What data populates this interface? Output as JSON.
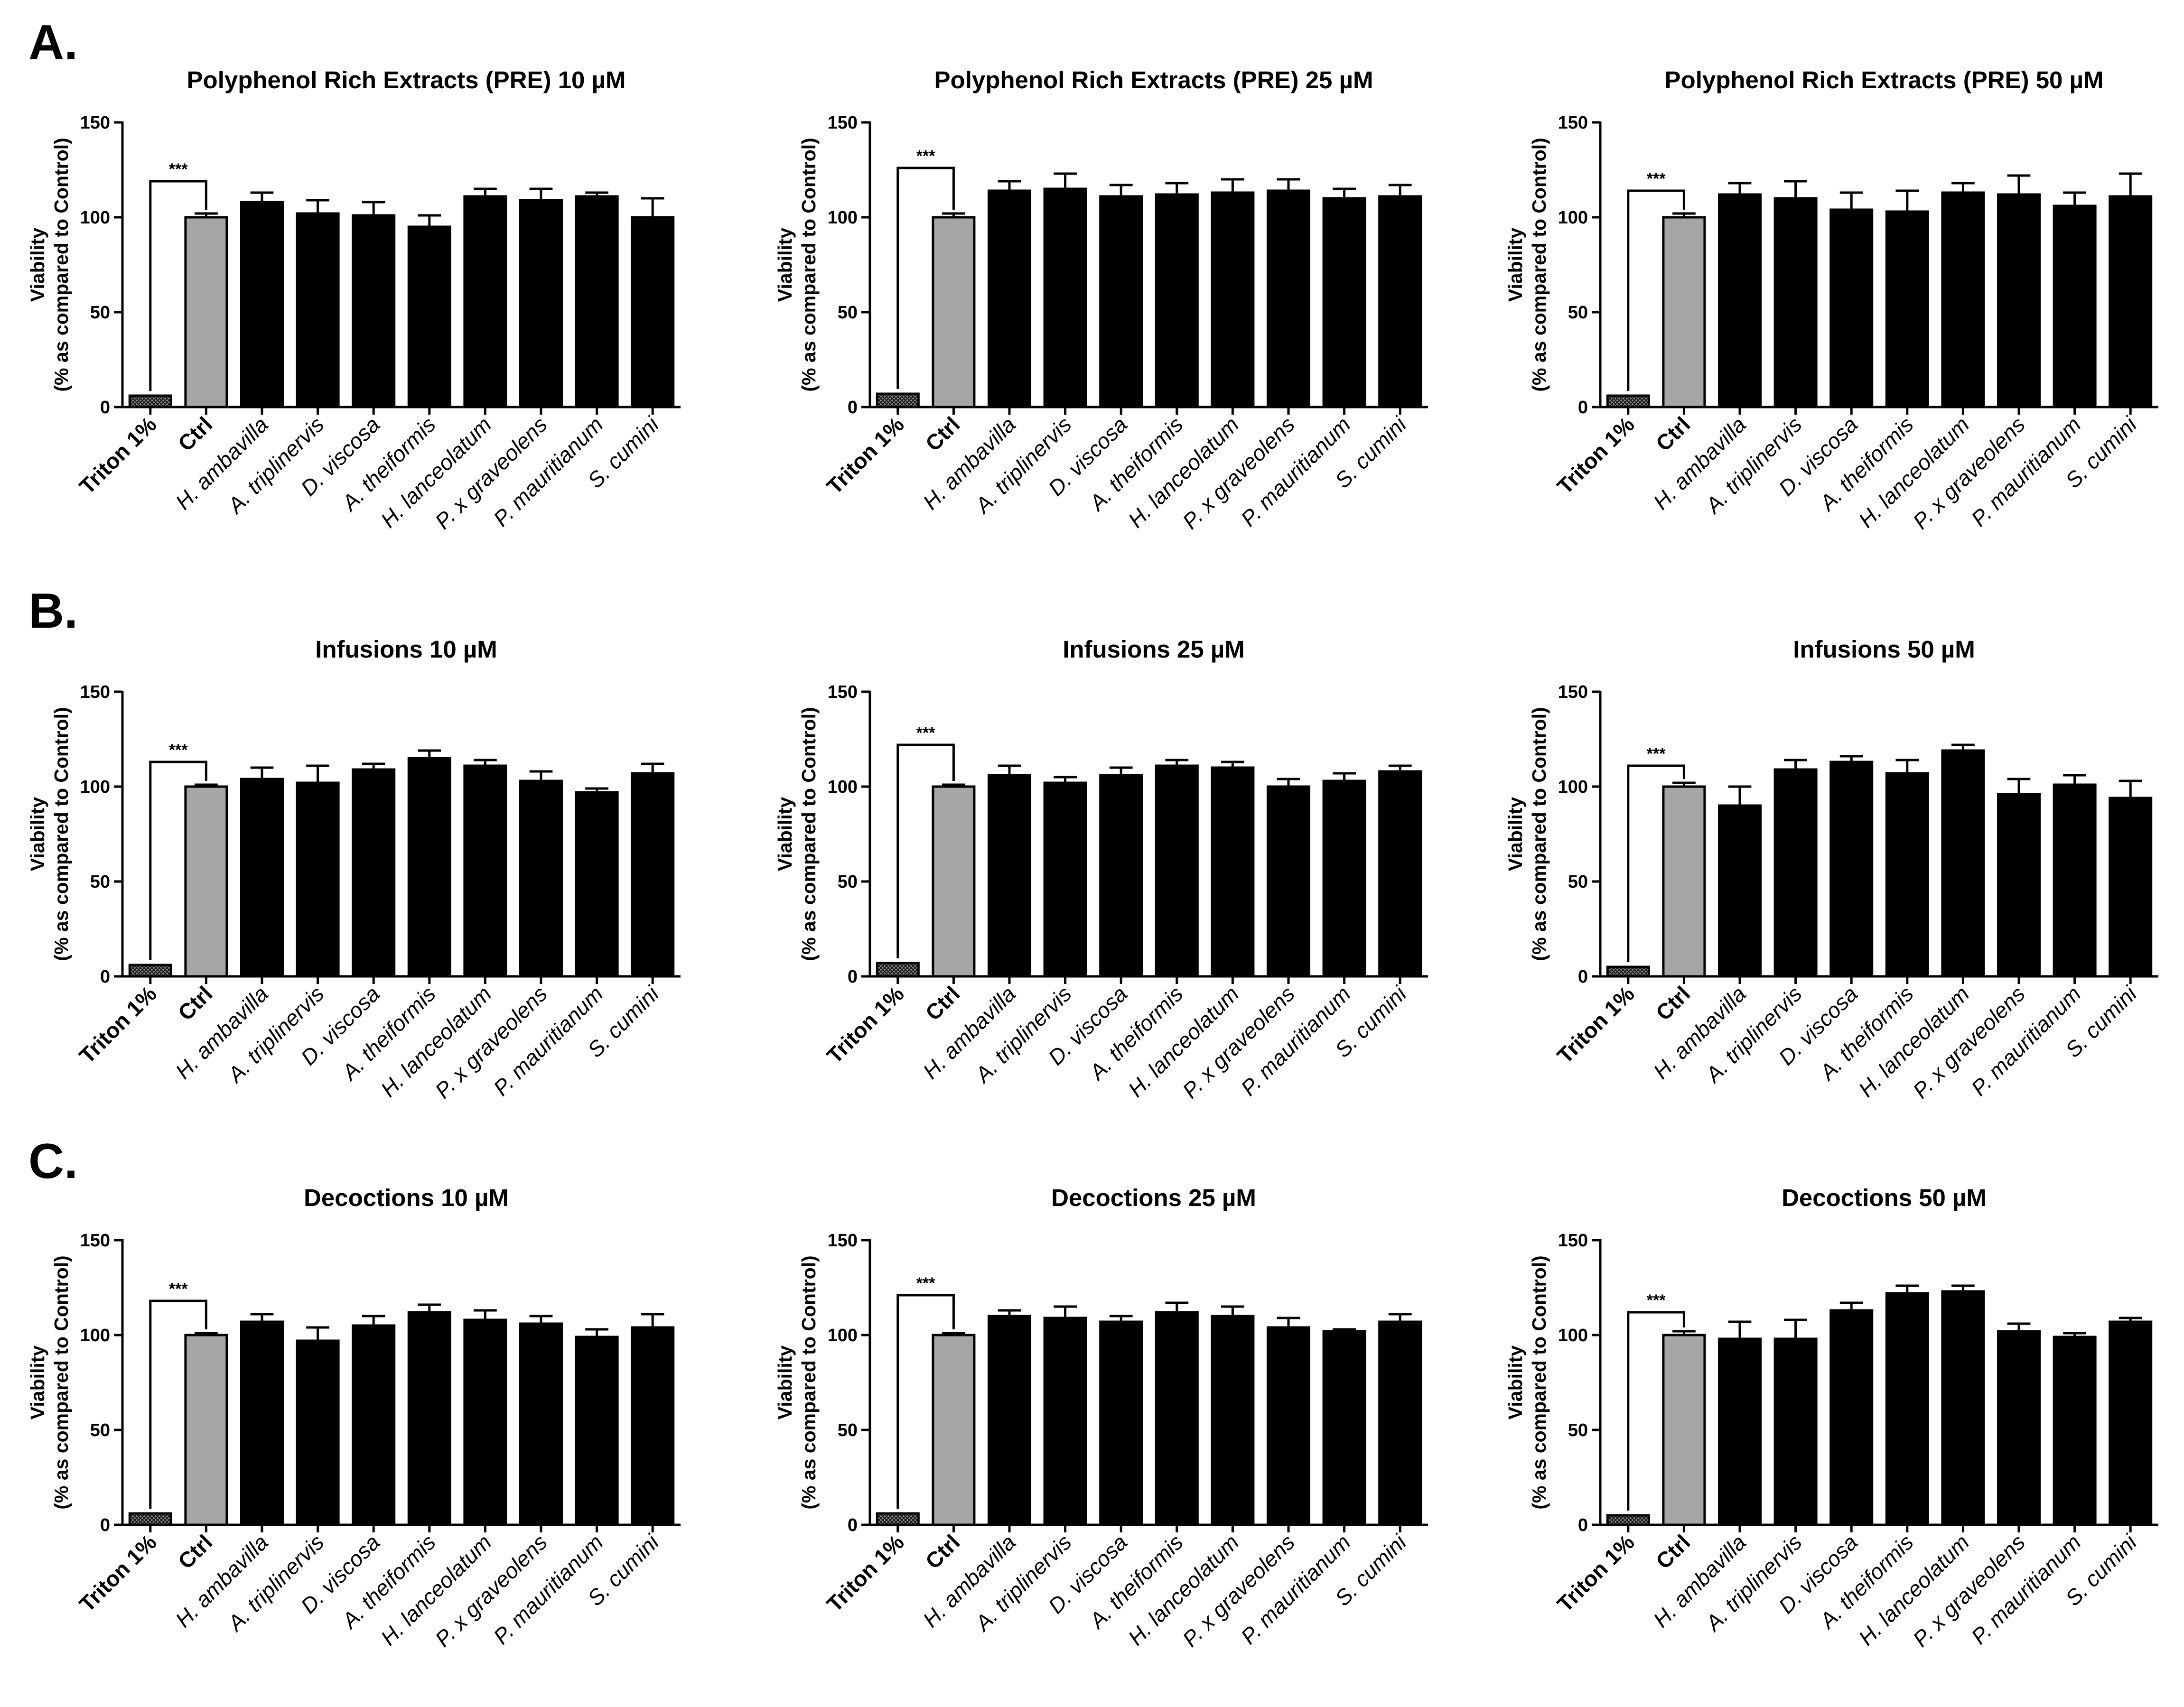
{
  "categories": [
    "Triton 1%",
    "Ctrl",
    "H. ambavilla",
    "A. triplinervis",
    "D. viscosa",
    "A. theiformis",
    "H. lanceolatum",
    "P. x graveolens",
    "P. mauritianum",
    "S. cumini"
  ],
  "colors": {
    "triton": "#555555",
    "ctrl": "#a6a6a6",
    "extract": "#000000",
    "axis": "#000000"
  },
  "chart_data": [
    {
      "panel": "A.",
      "type": "bar",
      "title": "Polyphenol Rich Extracts (PRE) 10 µM",
      "ylabel": "Viability (% as compared to Control)",
      "ylim": [
        0,
        150
      ],
      "yticks": [
        0,
        50,
        100,
        150
      ],
      "values": [
        6,
        100,
        108,
        102,
        101,
        95,
        111,
        109,
        111,
        100
      ],
      "errors": [
        0,
        2,
        5,
        7,
        7,
        6,
        4,
        6,
        2,
        10
      ],
      "significance": {
        "label": "***",
        "from": 0,
        "to": 1,
        "level": 119
      }
    },
    {
      "panel": "",
      "type": "bar",
      "title": "Polyphenol Rich Extracts (PRE) 25 µM",
      "ylabel": "Viability (% as compared to Control)",
      "ylim": [
        0,
        150
      ],
      "yticks": [
        0,
        50,
        100,
        150
      ],
      "values": [
        7,
        100,
        114,
        115,
        111,
        112,
        113,
        114,
        110,
        111
      ],
      "errors": [
        0,
        2,
        5,
        8,
        6,
        6,
        7,
        6,
        5,
        6
      ],
      "significance": {
        "label": "***",
        "from": 0,
        "to": 1,
        "level": 126
      }
    },
    {
      "panel": "",
      "type": "bar",
      "title": "Polyphenol Rich  Extracts (PRE) 50 µM",
      "ylabel": "Viability (% as compared to Control)",
      "ylim": [
        0,
        150
      ],
      "yticks": [
        0,
        50,
        100,
        150
      ],
      "values": [
        6,
        100,
        112,
        110,
        104,
        103,
        113,
        112,
        106,
        111
      ],
      "errors": [
        0,
        2,
        6,
        9,
        9,
        11,
        5,
        10,
        7,
        12
      ],
      "significance": {
        "label": "***",
        "from": 0,
        "to": 1,
        "level": 114
      }
    },
    {
      "panel": "B.",
      "type": "bar",
      "title": "Infusions 10 µM",
      "ylabel": "Viability (% as compared to Control)",
      "ylim": [
        0,
        150
      ],
      "yticks": [
        0,
        50,
        100,
        150
      ],
      "values": [
        6,
        100,
        104,
        102,
        109,
        115,
        111,
        103,
        97,
        107
      ],
      "errors": [
        0,
        1,
        6,
        9,
        3,
        4,
        3,
        5,
        2,
        5
      ],
      "significance": {
        "label": "***",
        "from": 0,
        "to": 1,
        "level": 113
      }
    },
    {
      "panel": "",
      "type": "bar",
      "title": "Infusions 25 µM",
      "ylabel": "Viability (% as compared to Control)",
      "ylim": [
        0,
        150
      ],
      "yticks": [
        0,
        50,
        100,
        150
      ],
      "values": [
        7,
        100,
        106,
        102,
        106,
        111,
        110,
        100,
        103,
        108
      ],
      "errors": [
        0,
        1,
        5,
        3,
        4,
        3,
        3,
        4,
        4,
        3
      ],
      "significance": {
        "label": "***",
        "from": 0,
        "to": 1,
        "level": 122
      }
    },
    {
      "panel": "",
      "type": "bar",
      "title": "Infusions 50 µM",
      "ylabel": "Viability (% as compared to Control)",
      "ylim": [
        0,
        150
      ],
      "yticks": [
        0,
        50,
        100,
        150
      ],
      "values": [
        5,
        100,
        90,
        109,
        113,
        107,
        119,
        96,
        101,
        94
      ],
      "errors": [
        0,
        2,
        10,
        5,
        3,
        7,
        3,
        8,
        5,
        9
      ],
      "significance": {
        "label": "***",
        "from": 0,
        "to": 1,
        "level": 111
      }
    },
    {
      "panel": "C.",
      "type": "bar",
      "title": "Decoctions 10 µM",
      "ylabel": "Viability (% as compared to Control)",
      "ylim": [
        0,
        150
      ],
      "yticks": [
        0,
        50,
        100,
        150
      ],
      "values": [
        6,
        100,
        107,
        97,
        105,
        112,
        108,
        106,
        99,
        104
      ],
      "errors": [
        0,
        1,
        4,
        7,
        5,
        4,
        5,
        4,
        4,
        7
      ],
      "significance": {
        "label": "***",
        "from": 0,
        "to": 1,
        "level": 118
      }
    },
    {
      "panel": "",
      "type": "bar",
      "title": "Decoctions 25 µM",
      "ylabel": "Viability (% as compared to Control)",
      "ylim": [
        0,
        150
      ],
      "yticks": [
        0,
        50,
        100,
        150
      ],
      "values": [
        6,
        100,
        110,
        109,
        107,
        112,
        110,
        104,
        102,
        107
      ],
      "errors": [
        0,
        1,
        3,
        6,
        3,
        5,
        5,
        5,
        1,
        4
      ],
      "significance": {
        "label": "***",
        "from": 0,
        "to": 1,
        "level": 121
      }
    },
    {
      "panel": "",
      "type": "bar",
      "title": "Decoctions 50 µM",
      "ylabel": "Viability (% as compared to Control)",
      "ylim": [
        0,
        150
      ],
      "yticks": [
        0,
        50,
        100,
        150
      ],
      "values": [
        5,
        100,
        98,
        98,
        113,
        122,
        123,
        102,
        99,
        107
      ],
      "errors": [
        0,
        2,
        9,
        10,
        4,
        4,
        3,
        4,
        2,
        2
      ],
      "significance": {
        "label": "***",
        "from": 0,
        "to": 1,
        "level": 112
      }
    }
  ]
}
